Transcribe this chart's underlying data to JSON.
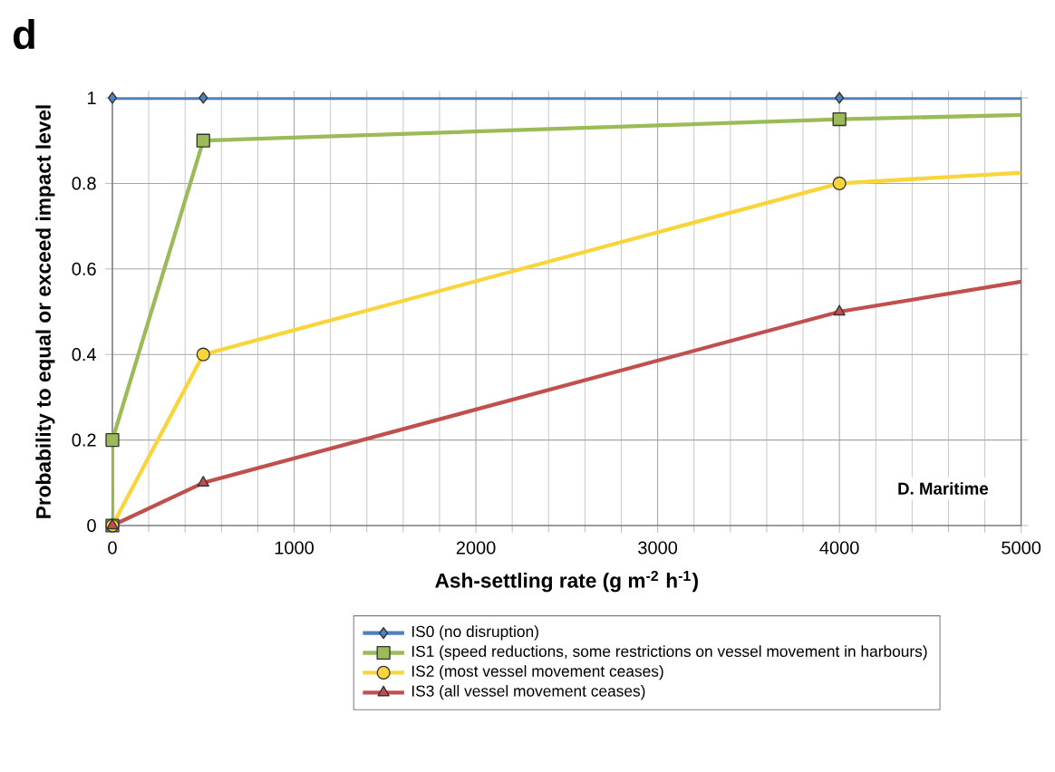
{
  "chart_data": {
    "type": "line",
    "title": "d",
    "xlabel": "Ash-settling rate (g m$^{-2}$ h$^{-1}$)",
    "ylabel": "Probability to equal or exceed impact level",
    "annotations": [
      "D. Maritime"
    ],
    "xlim": [
      0,
      5000
    ],
    "ylim": [
      0,
      1
    ],
    "xticks": [
      0,
      1000,
      2000,
      3000,
      4000,
      5000
    ],
    "yticks": [
      0,
      0.2,
      0.4,
      0.6,
      0.8,
      1
    ],
    "grid": true,
    "legend": "bottom",
    "series": [
      {
        "name": "IS0 (no disruption)",
        "color": "#4f81bd",
        "marker": "diamond",
        "x": [
          0,
          500,
          4000,
          5000
        ],
        "values": [
          1,
          1,
          1,
          1
        ]
      },
      {
        "name": "IS1 (speed reductions, some restrictions on vessel movement in harbours)",
        "color": "#9bbb59",
        "marker": "square",
        "x": [
          0,
          0,
          500,
          4000,
          5000
        ],
        "values": [
          0,
          0.2,
          0.9,
          0.95,
          0.96
        ]
      },
      {
        "name": "IS2 (most vessel movement ceases)",
        "color": "#f9d43a",
        "marker": "circle",
        "x": [
          0,
          500,
          4000,
          5000
        ],
        "values": [
          0,
          0.4,
          0.8,
          0.825
        ]
      },
      {
        "name": "IS3 (all vessel movement ceases)",
        "color": "#c0504d",
        "marker": "triangle",
        "x": [
          0,
          500,
          4000,
          5000
        ],
        "values": [
          0,
          0.1,
          0.5,
          0.57
        ]
      }
    ]
  }
}
